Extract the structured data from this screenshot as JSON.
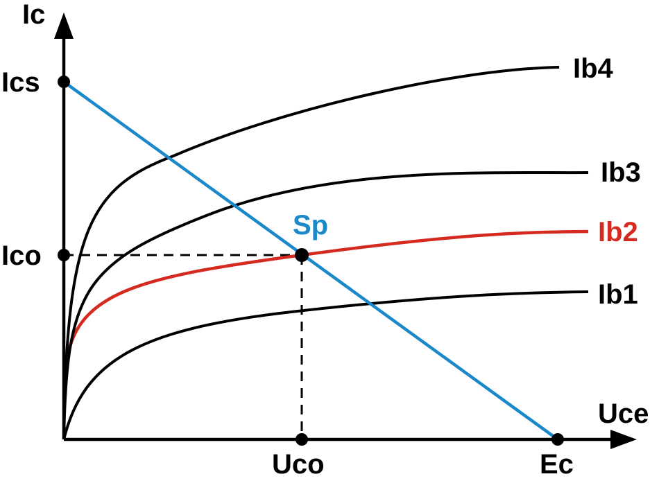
{
  "axes": {
    "y_label": "Ic",
    "x_label": "Uce"
  },
  "tick_labels": {
    "ics": "Ics",
    "ico": "Ico",
    "uco": "Uco",
    "ec": "Ec"
  },
  "operating_point": {
    "label": "Sp"
  },
  "curves": [
    {
      "label": "Ib4",
      "color": "#000000"
    },
    {
      "label": "Ib3",
      "color": "#000000"
    },
    {
      "label": "Ib2",
      "color": "#d42a20"
    },
    {
      "label": "Ib1",
      "color": "#000000"
    }
  ],
  "colors": {
    "load_line": "#1a88c9",
    "highlight_curve": "#d42a20",
    "axes": "#000000"
  }
}
